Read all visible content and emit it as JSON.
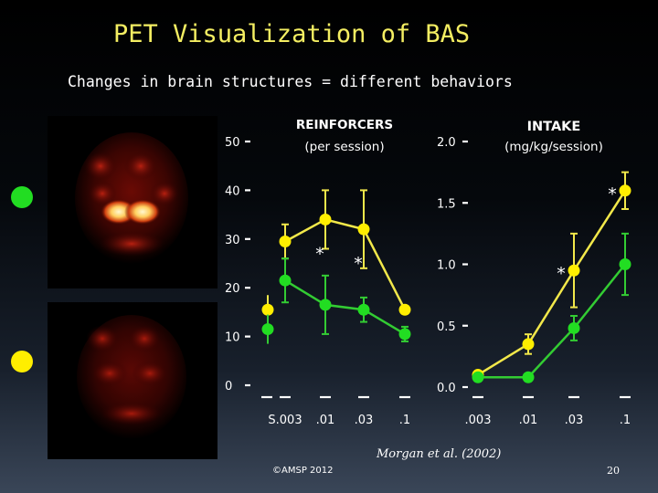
{
  "slide": {
    "title": "PET Visualization of BAS",
    "subtitle": "Changes in brain structures = different behaviors",
    "citation": "Morgan et al. (2002)",
    "copyright": "©AMSP 2012",
    "page_number": "20"
  },
  "legend": {
    "green_color": "#22dd22",
    "yellow_color": "#ffee00"
  },
  "colors": {
    "yellow_line": "#f2e84a",
    "yellow_marker": "#ffee00",
    "green_line": "#33cc33",
    "green_marker": "#22dd22"
  },
  "chart_data": [
    {
      "type": "line",
      "title": "REINFORCERS",
      "subtitle": "(per session)",
      "categories": [
        "S.003",
        ".01",
        ".03",
        ".1"
      ],
      "ylim": [
        0,
        50
      ],
      "yticks": [
        "0",
        "10",
        "20",
        "30",
        "40",
        "50"
      ],
      "saline_values": {
        "yellow": 15.5,
        "green": 11.5
      },
      "series": [
        {
          "color": "#ffee00",
          "values": [
            29.5,
            34,
            32,
            15.5
          ],
          "errors": [
            3.5,
            6,
            8,
            0
          ],
          "annotations": [
            "",
            "*",
            "*",
            ""
          ]
        },
        {
          "color": "#22dd22",
          "values": [
            21.5,
            16.5,
            15.5,
            10.5
          ],
          "errors": [
            4.5,
            6,
            2.5,
            1.5
          ],
          "annotations": [
            "",
            "",
            "",
            ""
          ]
        }
      ]
    },
    {
      "type": "line",
      "title": "INTAKE",
      "subtitle": "(mg/kg/session)",
      "categories": [
        ".003",
        ".01",
        ".03",
        ".1"
      ],
      "ylim": [
        0,
        2.0
      ],
      "yticks": [
        "0.0",
        "0.5",
        "1.0",
        "1.5",
        "2.0"
      ],
      "series": [
        {
          "color": "#ffee00",
          "values": [
            0.1,
            0.35,
            0.95,
            1.6
          ],
          "errors": [
            0.03,
            0.08,
            0.3,
            0.15
          ],
          "annotations": [
            "",
            "",
            "*",
            "*"
          ]
        },
        {
          "color": "#22dd22",
          "values": [
            0.08,
            0.08,
            0.48,
            1.0
          ],
          "errors": [
            0.02,
            0.02,
            0.1,
            0.25
          ],
          "annotations": [
            "",
            "",
            "",
            ""
          ]
        }
      ]
    }
  ]
}
